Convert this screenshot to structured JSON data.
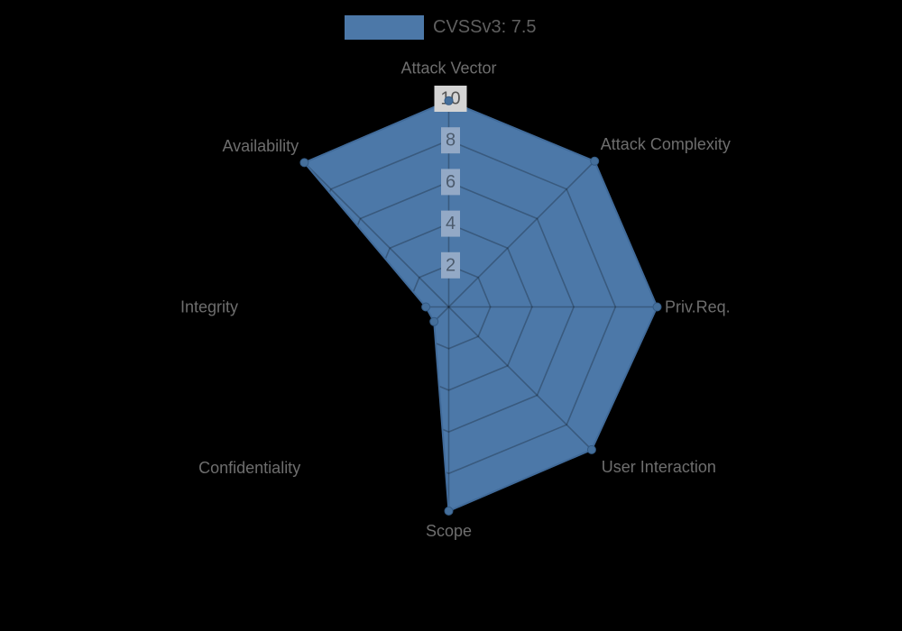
{
  "background_color": "#000000",
  "legend": {
    "label": "CVSSv3: 7.5",
    "swatch_color": "#4c78a8",
    "text_color": "#5f5f5f"
  },
  "chart_data": {
    "type": "radar",
    "title": "CVSSv3: 7.5",
    "axes": [
      "Attack Vector",
      "Attack Complexity",
      "Priv.Req.",
      "User Interaction",
      "Scope",
      "Confidentiality",
      "Integrity",
      "Availability"
    ],
    "series": [
      {
        "name": "CVSSv3: 7.5",
        "values": [
          9.9,
          9.9,
          10,
          9.7,
          9.8,
          1.0,
          1.1,
          9.8
        ]
      }
    ],
    "scale": {
      "min": 0,
      "max": 10,
      "tick_step": 2,
      "tick_labels": [
        "2",
        "4",
        "6",
        "8",
        "10"
      ]
    },
    "legend_position": "top",
    "grid": true,
    "colors": {
      "fill": "#4c78a8",
      "border": "#416b9a",
      "marker": "#456f9b",
      "marker_border": "#335a84",
      "grid_line": "rgba(0,0,0,0.25)",
      "axis_label": "#6e6e6e",
      "tick_text": "#4c5b6d",
      "tick_text_outer": "#555555",
      "tick_backdrop": "#93a9c6",
      "tick_backdrop_outer": "#d4d4d4"
    }
  }
}
